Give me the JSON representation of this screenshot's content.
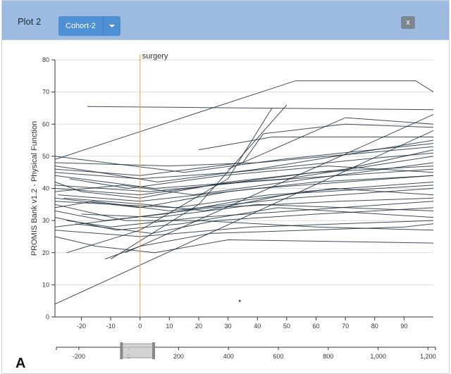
{
  "panel": {
    "title": "Plot 2",
    "cohort_selected": "Cohort-2",
    "close_label": "x",
    "figure_letter": "A"
  },
  "colors": {
    "header_bg": "#9dbbe0",
    "line_color": "#1f2d3d",
    "surgery_line": "#f5a040",
    "button_bg": "#4f8fd3"
  },
  "chart_data": {
    "type": "line",
    "ylabel": "PROMIS Bank v1.2 - Physical Function",
    "xlabel": "",
    "xlim": [
      -29,
      100
    ],
    "ylim": [
      0,
      80
    ],
    "x_ticks": [
      -20,
      -10,
      0,
      10,
      20,
      30,
      40,
      50,
      60,
      70,
      80,
      90
    ],
    "y_ticks": [
      0,
      10,
      20,
      30,
      40,
      50,
      60,
      70,
      80
    ],
    "grid": "horizontal",
    "annotations": [
      {
        "label": "surgery",
        "x": 0
      }
    ],
    "series": [
      {
        "x": [
          -29,
          53,
          94,
          100
        ],
        "y": [
          49,
          73.5,
          73.5,
          70
        ]
      },
      {
        "x": [
          -18,
          100
        ],
        "y": [
          65.5,
          64.5
        ]
      },
      {
        "x": [
          -29,
          100
        ],
        "y": [
          4,
          58
        ]
      },
      {
        "x": [
          -5,
          100
        ],
        "y": [
          20,
          63
        ]
      },
      {
        "x": [
          -25,
          0,
          30,
          45
        ],
        "y": [
          20,
          27,
          43,
          65
        ]
      },
      {
        "x": [
          -10,
          20,
          50
        ],
        "y": [
          18,
          35,
          66
        ]
      },
      {
        "x": [
          -29,
          0,
          35,
          42,
          70,
          100
        ],
        "y": [
          46,
          44,
          48,
          57,
          60,
          59
        ]
      },
      {
        "x": [
          -29,
          -5,
          20,
          60,
          100
        ],
        "y": [
          35,
          30,
          30,
          28,
          27
        ]
      },
      {
        "x": [
          -29,
          10,
          40,
          100
        ],
        "y": [
          48,
          47,
          48,
          53
        ]
      },
      {
        "x": [
          -29,
          -15,
          5,
          30,
          100
        ],
        "y": [
          25,
          22,
          20,
          24,
          23
        ]
      },
      {
        "x": [
          -25,
          -10,
          20,
          100
        ],
        "y": [
          30,
          28,
          31,
          36
        ]
      },
      {
        "x": [
          -29,
          0,
          25,
          60,
          100
        ],
        "y": [
          40,
          38,
          41,
          45,
          47
        ]
      },
      {
        "x": [
          -29,
          5,
          50,
          100
        ],
        "y": [
          44,
          40,
          43,
          50
        ]
      },
      {
        "x": [
          -28,
          0,
          40,
          100
        ],
        "y": [
          38,
          36,
          40,
          44
        ]
      },
      {
        "x": [
          -29,
          -20,
          0,
          30,
          70,
          100
        ],
        "y": [
          42,
          39,
          37,
          42,
          46,
          52
        ]
      },
      {
        "x": [
          -29,
          -12,
          8,
          33,
          66,
          100
        ],
        "y": [
          33,
          30,
          32,
          36,
          40,
          38
        ]
      },
      {
        "x": [
          -26,
          2,
          22,
          55,
          100
        ],
        "y": [
          37,
          35,
          33,
          39,
          42
        ]
      },
      {
        "x": [
          -29,
          -8,
          14,
          47,
          100
        ],
        "y": [
          31,
          27,
          29,
          34,
          31
        ]
      },
      {
        "x": [
          -29,
          0,
          32,
          75,
          100
        ],
        "y": [
          45,
          43,
          45,
          49,
          51
        ]
      },
      {
        "x": [
          -22,
          4,
          26,
          60,
          100
        ],
        "y": [
          29,
          26,
          30,
          32,
          34
        ]
      },
      {
        "x": [
          -29,
          -14,
          6,
          40,
          100
        ],
        "y": [
          47,
          45,
          42,
          46,
          55
        ]
      },
      {
        "x": [
          -29,
          12,
          44,
          100
        ],
        "y": [
          36,
          34,
          38,
          41
        ]
      },
      {
        "x": [
          -29,
          -6,
          18,
          58,
          100
        ],
        "y": [
          39,
          41,
          38,
          43,
          48
        ]
      },
      {
        "x": [
          -29,
          0,
          38,
          100
        ],
        "y": [
          27,
          25,
          28,
          30
        ]
      },
      {
        "x": [
          -24,
          -4,
          28,
          64,
          100
        ],
        "y": [
          43,
          40,
          44,
          47,
          45
        ]
      },
      {
        "x": [
          -29,
          -16,
          10,
          52,
          100
        ],
        "y": [
          34,
          36,
          33,
          37,
          40
        ]
      },
      {
        "x": [
          -29,
          3,
          36,
          100
        ],
        "y": [
          41,
          39,
          42,
          46
        ]
      },
      {
        "x": [
          -20,
          6,
          40,
          100
        ],
        "y": [
          32,
          31,
          35,
          33
        ]
      },
      {
        "x": [
          -29,
          -2,
          24,
          68,
          100
        ],
        "y": [
          28,
          31,
          34,
          36,
          37
        ]
      },
      {
        "x": [
          -29,
          15,
          48,
          100
        ],
        "y": [
          50,
          45,
          49,
          54
        ]
      },
      {
        "x": [
          -12,
          0,
          24,
          90,
          100
        ],
        "y": [
          18,
          22,
          26,
          28,
          29
        ]
      },
      {
        "x": [
          -29,
          0,
          30,
          60,
          100
        ],
        "y": [
          37,
          34,
          39,
          42,
          44
        ]
      },
      {
        "x": [
          20,
          45,
          100
        ],
        "y": [
          52,
          56,
          56
        ]
      },
      {
        "x": [
          30,
          70,
          100
        ],
        "y": [
          46,
          62,
          60
        ]
      }
    ],
    "points": [
      {
        "x": 34,
        "y": 5
      }
    ]
  },
  "brush": {
    "ticks": [
      "-200",
      "0",
      "200",
      "400",
      "600",
      "800",
      "1,000",
      "1,200"
    ],
    "tick_values": [
      -200,
      0,
      200,
      400,
      600,
      800,
      1000,
      1200
    ],
    "domain": [
      -290,
      1230
    ],
    "selection": [
      -29,
      100
    ]
  }
}
